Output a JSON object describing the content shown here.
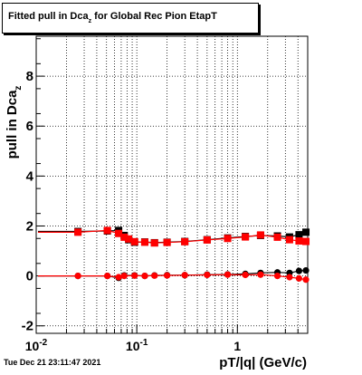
{
  "title": {
    "main": "Fitted pull in Dca",
    "subscript": "z",
    "tail": " for Global Rec Pion EtapT"
  },
  "timestamp": "Tue Dec 21 23:11:47 2021",
  "chart_data": {
    "type": "scatter",
    "xlabel": "pT/|q| (GeV/c)",
    "ylabel": "pull in Dca",
    "ylabel_sub": "z",
    "x_scale": "log",
    "xlim": [
      0.01,
      5.0
    ],
    "ylim": [
      -2.3,
      9.6
    ],
    "grid": true,
    "x_ticks": [
      {
        "value": 0.01,
        "label": "10",
        "exp": "-2"
      },
      {
        "value": 0.1,
        "label": "10",
        "exp": "-1"
      },
      {
        "value": 1,
        "label": "1",
        "exp": ""
      }
    ],
    "y_ticks": [
      -2,
      0,
      2,
      4,
      6,
      8
    ],
    "series": [
      {
        "color": "#000000",
        "marker": "square",
        "points": [
          [
            0.026,
            1.78
          ],
          [
            0.051,
            1.8
          ],
          [
            0.066,
            1.82
          ],
          [
            0.075,
            1.62
          ],
          [
            0.083,
            1.45
          ],
          [
            0.095,
            1.35
          ],
          [
            0.12,
            1.36
          ],
          [
            0.15,
            1.33
          ],
          [
            0.2,
            1.35
          ],
          [
            0.3,
            1.38
          ],
          [
            0.5,
            1.45
          ],
          [
            0.8,
            1.52
          ],
          [
            1.2,
            1.58
          ],
          [
            1.7,
            1.62
          ],
          [
            2.5,
            1.6
          ],
          [
            3.3,
            1.56
          ],
          [
            4.1,
            1.65
          ],
          [
            4.8,
            1.75
          ]
        ]
      },
      {
        "color": "#ff0000",
        "marker": "square",
        "points": [
          [
            0.026,
            1.75
          ],
          [
            0.051,
            1.82
          ],
          [
            0.066,
            1.7
          ],
          [
            0.075,
            1.55
          ],
          [
            0.083,
            1.48
          ],
          [
            0.095,
            1.37
          ],
          [
            0.12,
            1.35
          ],
          [
            0.15,
            1.32
          ],
          [
            0.2,
            1.34
          ],
          [
            0.3,
            1.37
          ],
          [
            0.5,
            1.44
          ],
          [
            0.8,
            1.5
          ],
          [
            1.2,
            1.56
          ],
          [
            1.7,
            1.64
          ],
          [
            2.5,
            1.55
          ],
          [
            3.3,
            1.45
          ],
          [
            4.1,
            1.4
          ],
          [
            4.8,
            1.38
          ]
        ]
      },
      {
        "color": "#000000",
        "marker": "circle",
        "points": [
          [
            0.026,
            0.0
          ],
          [
            0.051,
            0.0
          ],
          [
            0.066,
            -0.08
          ],
          [
            0.075,
            0.02
          ],
          [
            0.095,
            0.02
          ],
          [
            0.12,
            0.0
          ],
          [
            0.15,
            0.02
          ],
          [
            0.2,
            0.03
          ],
          [
            0.3,
            0.03
          ],
          [
            0.5,
            0.05
          ],
          [
            0.8,
            0.06
          ],
          [
            1.2,
            0.08
          ],
          [
            1.7,
            0.12
          ],
          [
            2.5,
            0.14
          ],
          [
            3.3,
            0.12
          ],
          [
            4.1,
            0.2
          ],
          [
            4.8,
            0.22
          ]
        ]
      },
      {
        "color": "#ff0000",
        "marker": "circle",
        "points": [
          [
            0.026,
            0.0
          ],
          [
            0.051,
            0.0
          ],
          [
            0.066,
            -0.05
          ],
          [
            0.075,
            0.0
          ],
          [
            0.095,
            0.01
          ],
          [
            0.12,
            0.0
          ],
          [
            0.15,
            0.01
          ],
          [
            0.2,
            0.02
          ],
          [
            0.3,
            0.03
          ],
          [
            0.5,
            0.04
          ],
          [
            0.8,
            0.05
          ],
          [
            1.2,
            0.04
          ],
          [
            1.7,
            0.05
          ],
          [
            2.5,
            0.0
          ],
          [
            3.3,
            -0.05
          ],
          [
            4.1,
            -0.1
          ],
          [
            4.8,
            -0.15
          ]
        ]
      }
    ]
  }
}
